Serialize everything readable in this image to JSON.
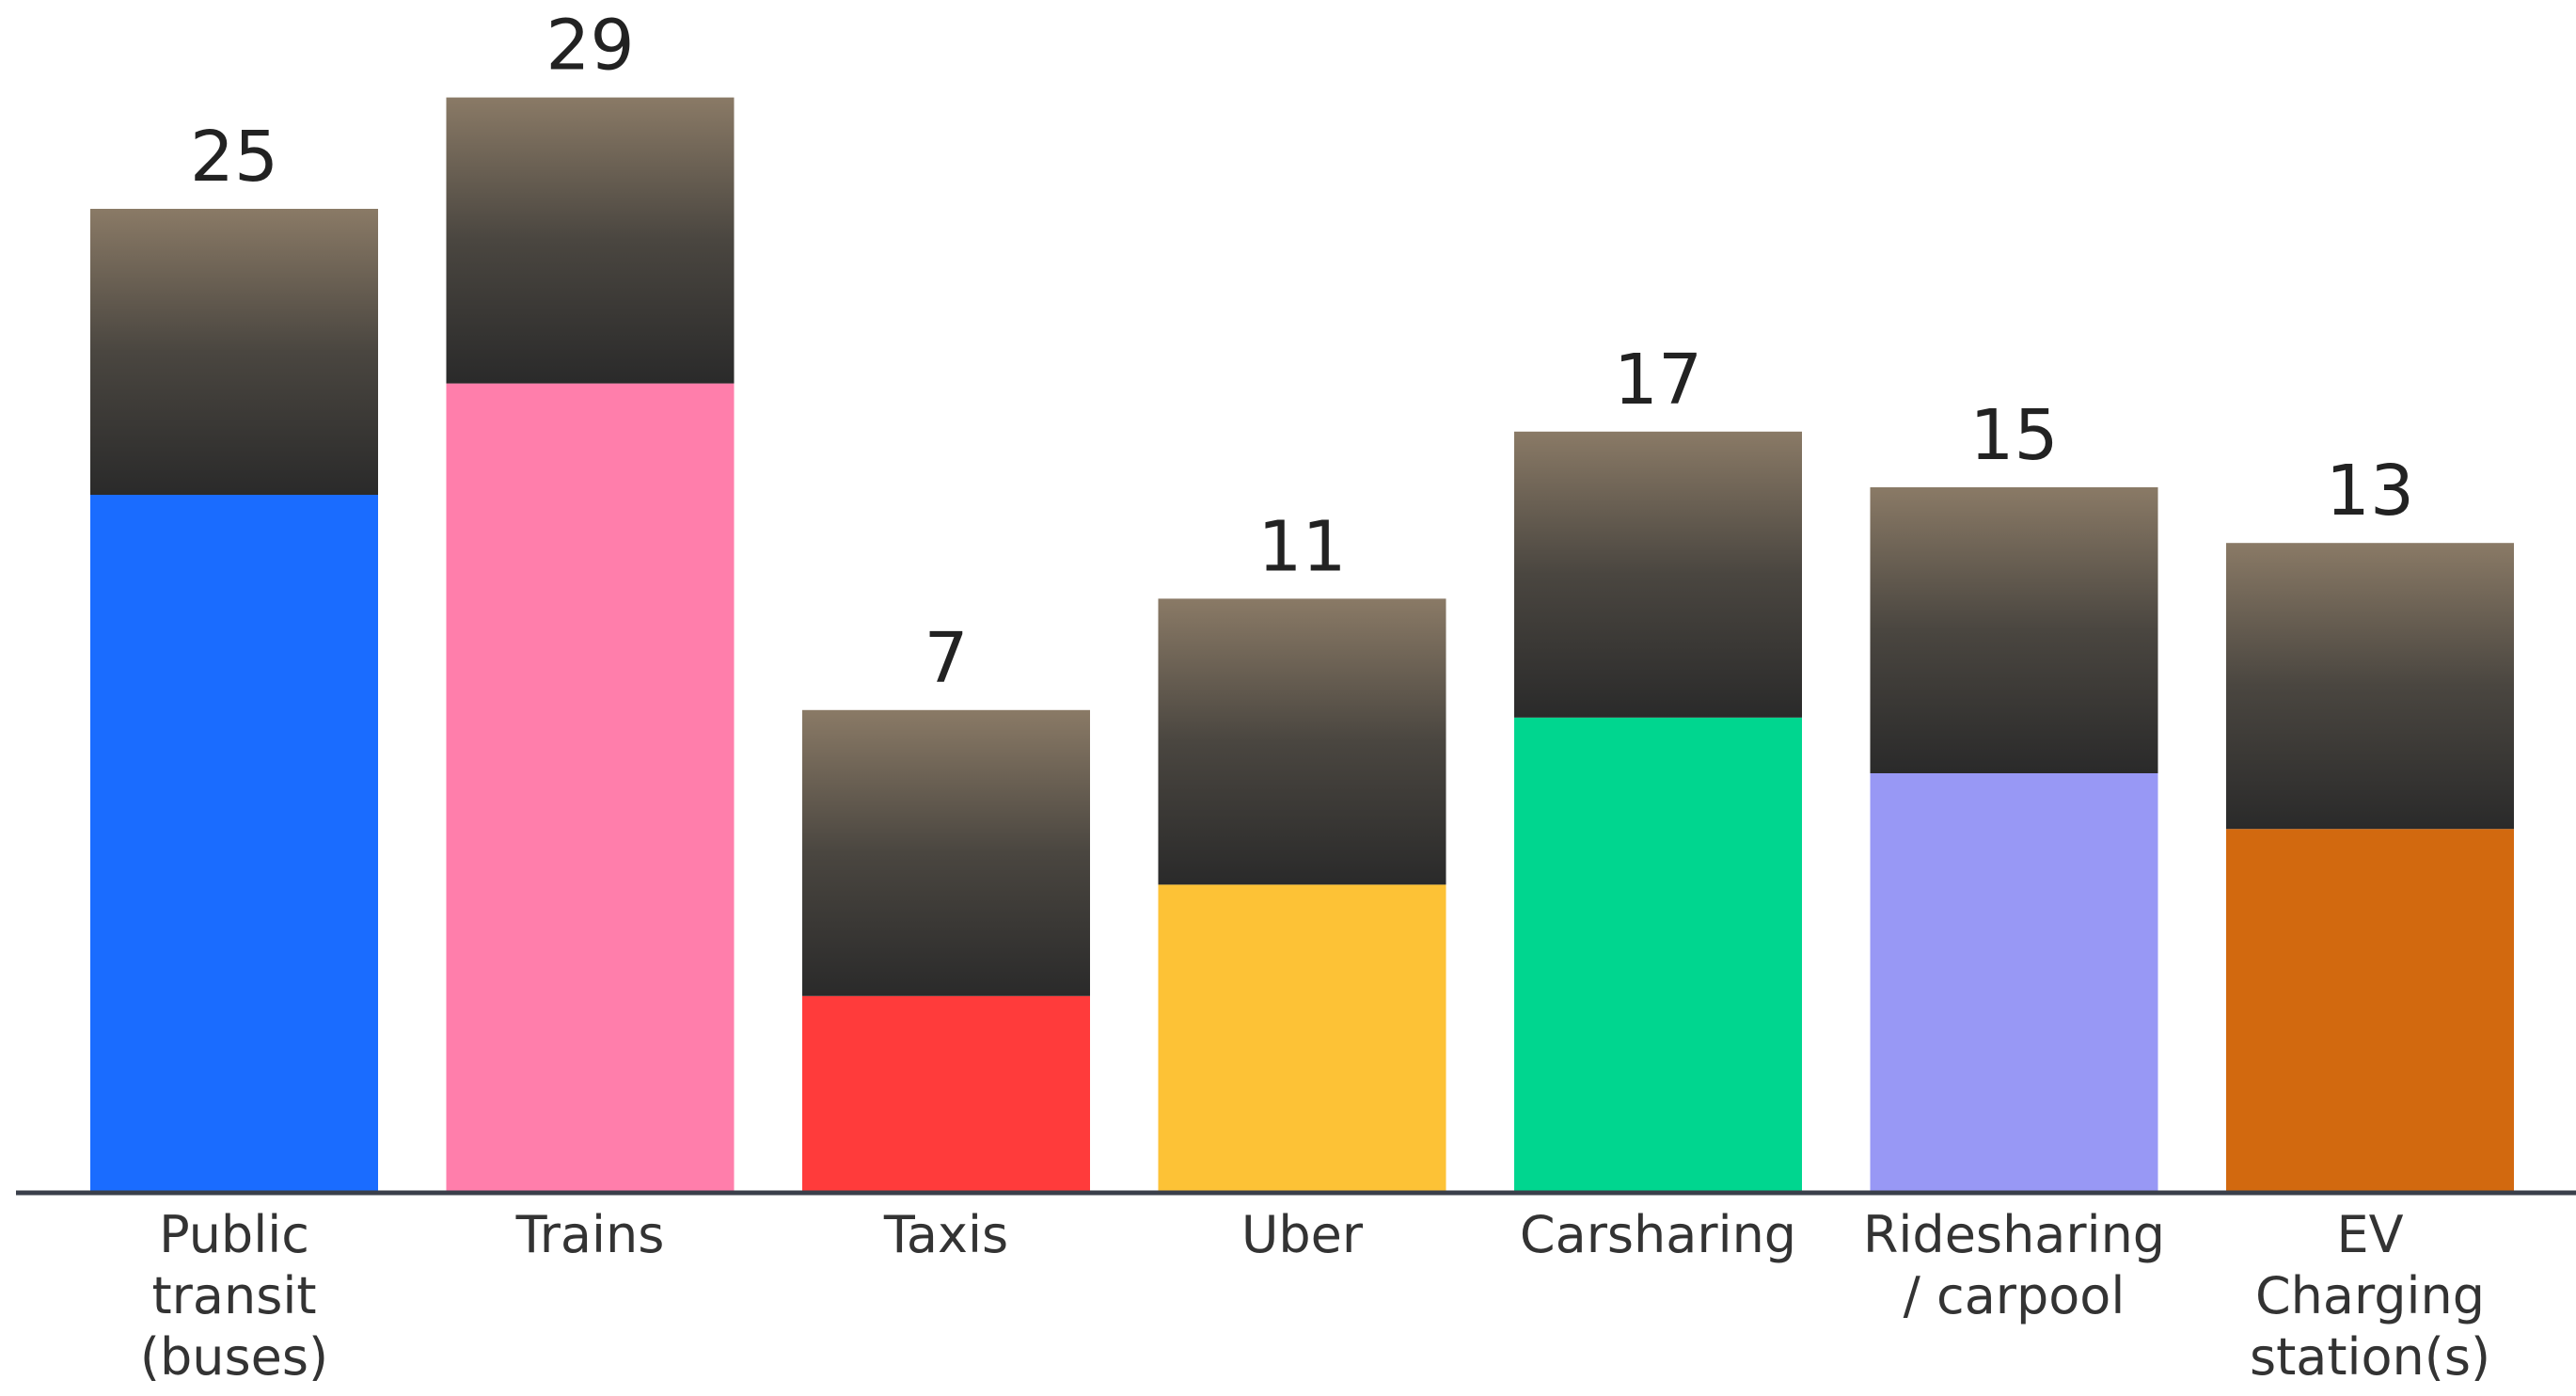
{
  "chart_data": {
    "type": "bar",
    "categories": [
      "Public\ntransit\n(buses)",
      "Trains",
      "Taxis",
      "Uber",
      "Carsharing",
      "Ridesharing\n/ carpool",
      "EV\nCharging\nstation(s)"
    ],
    "series": [
      {
        "values": [
          25,
          29,
          7,
          11,
          17,
          15,
          13
        ],
        "colors": [
          "#1a6cff",
          "#ff7eab",
          "#ff3b3b",
          "#fdc236",
          "#00d68f",
          "#9898f5",
          "#d2690f"
        ]
      }
    ]
  }
}
